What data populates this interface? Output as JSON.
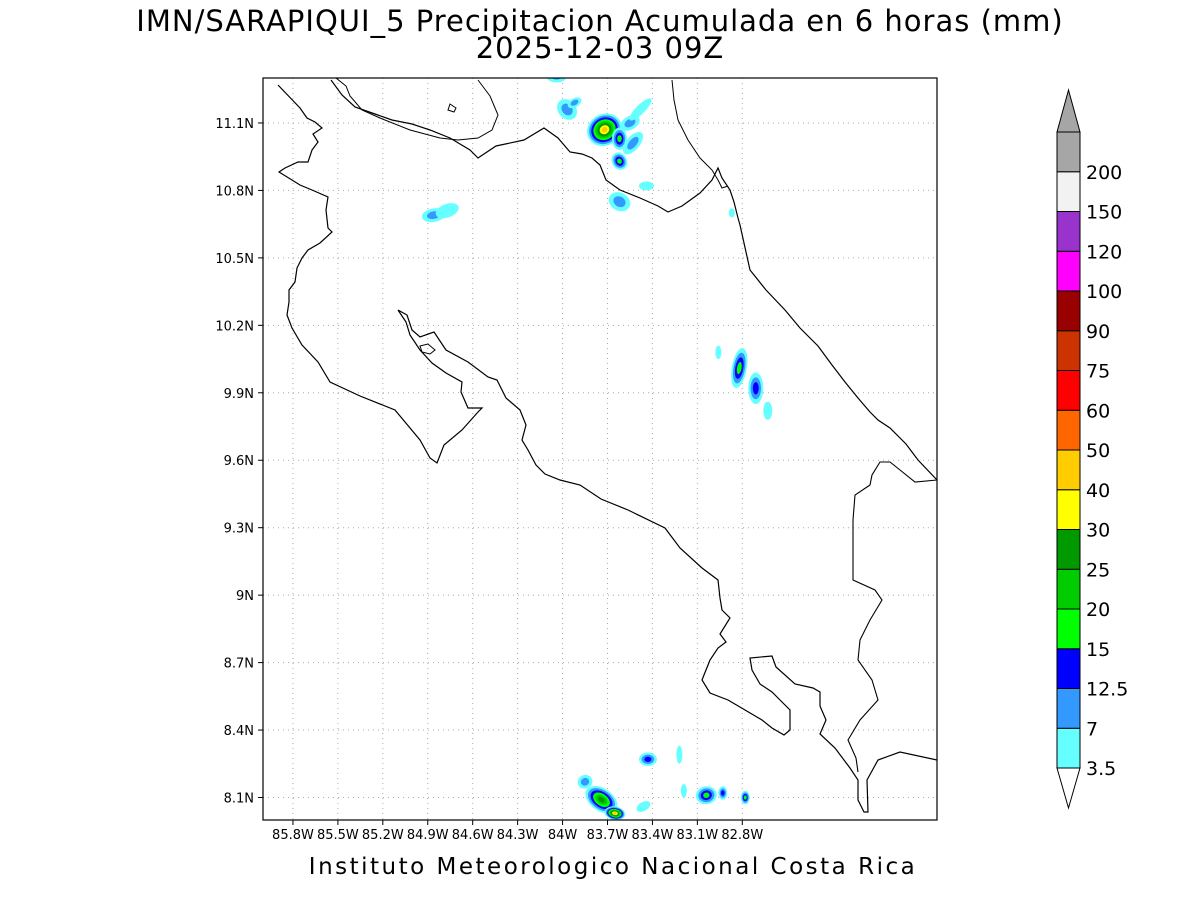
{
  "title": {
    "line1": "IMN/SARAPIQUI_5 Precipitacion Acumulada en 6 horas (mm)",
    "line2": "2025-12-03 09Z"
  },
  "footer": "Instituto Meteorologico Nacional Costa Rica",
  "map": {
    "lon_range": [
      -86.0,
      -81.5
    ],
    "lat_range": [
      8.0,
      11.3
    ],
    "lon_ticks": [
      {
        "value": -85.8,
        "label": "85.8W"
      },
      {
        "value": -85.5,
        "label": "85.5W"
      },
      {
        "value": -85.2,
        "label": "85.2W"
      },
      {
        "value": -84.9,
        "label": "84.9W"
      },
      {
        "value": -84.6,
        "label": "84.6W"
      },
      {
        "value": -84.3,
        "label": "84.3W"
      },
      {
        "value": -84.0,
        "label": "84W"
      },
      {
        "value": -83.7,
        "label": "83.7W"
      },
      {
        "value": -83.4,
        "label": "83.4W"
      },
      {
        "value": -83.1,
        "label": "83.1W"
      },
      {
        "value": -82.8,
        "label": "82.8W"
      }
    ],
    "lat_ticks": [
      {
        "value": 8.1,
        "label": "8.1N"
      },
      {
        "value": 8.4,
        "label": "8.4N"
      },
      {
        "value": 8.7,
        "label": "8.7N"
      },
      {
        "value": 9.0,
        "label": "9N"
      },
      {
        "value": 9.3,
        "label": "9.3N"
      },
      {
        "value": 9.6,
        "label": "9.6N"
      },
      {
        "value": 9.9,
        "label": "9.9N"
      },
      {
        "value": 10.2,
        "label": "10.2N"
      },
      {
        "value": 10.5,
        "label": "10.5N"
      },
      {
        "value": 10.8,
        "label": "10.8N"
      },
      {
        "value": 11.1,
        "label": "11.1N"
      }
    ],
    "grid": true,
    "projection": "latlon"
  },
  "legend": {
    "bins": [
      {
        "label": "3.5",
        "color": "#66ffff"
      },
      {
        "label": "7",
        "color": "#3399ff"
      },
      {
        "label": "12.5",
        "color": "#0000ff"
      },
      {
        "label": "15",
        "color": "#00ff00"
      },
      {
        "label": "20",
        "color": "#00cc00"
      },
      {
        "label": "25",
        "color": "#009900"
      },
      {
        "label": "30",
        "color": "#ffff00"
      },
      {
        "label": "40",
        "color": "#ffcc00"
      },
      {
        "label": "50",
        "color": "#ff6600"
      },
      {
        "label": "60",
        "color": "#ff0000"
      },
      {
        "label": "75",
        "color": "#cc3300"
      },
      {
        "label": "90",
        "color": "#990000"
      },
      {
        "label": "100",
        "color": "#ff00ff"
      },
      {
        "label": "120",
        "color": "#9933cc"
      },
      {
        "label": "150",
        "color": "#f2f2f2"
      },
      {
        "label": "200",
        "color": "#a6a6a6"
      }
    ],
    "under_color": "#ffffff",
    "over_color": "#a6a6a6"
  },
  "rain_cells": [
    {
      "lon": -83.72,
      "lat": 11.07,
      "level": 7,
      "rx": 0.12,
      "ry": 0.07,
      "rot": -30
    },
    {
      "lon": -83.62,
      "lat": 11.03,
      "level": 3,
      "rx": 0.05,
      "ry": 0.05,
      "rot": 0
    },
    {
      "lon": -83.62,
      "lat": 10.93,
      "level": 3,
      "rx": 0.05,
      "ry": 0.04,
      "rot": -30
    },
    {
      "lon": -83.55,
      "lat": 11.1,
      "level": 1,
      "rx": 0.07,
      "ry": 0.03,
      "rot": -30
    },
    {
      "lon": -83.53,
      "lat": 11.01,
      "level": 1,
      "rx": 0.09,
      "ry": 0.03,
      "rot": -50
    },
    {
      "lon": -83.62,
      "lat": 10.75,
      "level": 1,
      "rx": 0.06,
      "ry": 0.05,
      "rot": -60
    },
    {
      "lon": -83.97,
      "lat": 11.16,
      "level": 1,
      "rx": 0.06,
      "ry": 0.05,
      "rot": -40
    },
    {
      "lon": -83.92,
      "lat": 11.19,
      "level": 1,
      "rx": 0.05,
      "ry": 0.02,
      "rot": -30
    },
    {
      "lon": -84.04,
      "lat": 11.31,
      "level": 1,
      "rx": 0.07,
      "ry": 0.03,
      "rot": 0
    },
    {
      "lon": -83.48,
      "lat": 11.16,
      "level": 0,
      "rx": 0.1,
      "ry": 0.02,
      "rot": -45
    },
    {
      "lon": -83.44,
      "lat": 10.82,
      "level": 0,
      "rx": 0.05,
      "ry": 0.02,
      "rot": 0
    },
    {
      "lon": -84.86,
      "lat": 10.69,
      "level": 1,
      "rx": 0.08,
      "ry": 0.03,
      "rot": -10
    },
    {
      "lon": -84.77,
      "lat": 10.71,
      "level": 0,
      "rx": 0.08,
      "ry": 0.03,
      "rot": -20
    },
    {
      "lon": -82.87,
      "lat": 10.7,
      "level": 0,
      "rx": 0.02,
      "ry": 0.02,
      "rot": 0
    },
    {
      "lon": -82.82,
      "lat": 10.01,
      "level": 3,
      "rx": 0.05,
      "ry": 0.09,
      "rot": 10
    },
    {
      "lon": -82.71,
      "lat": 9.92,
      "level": 2,
      "rx": 0.05,
      "ry": 0.07,
      "rot": 0
    },
    {
      "lon": -82.63,
      "lat": 9.82,
      "level": 0,
      "rx": 0.03,
      "ry": 0.04,
      "rot": 0
    },
    {
      "lon": -82.96,
      "lat": 10.08,
      "level": 0,
      "rx": 0.02,
      "ry": 0.03,
      "rot": 0
    },
    {
      "lon": -83.74,
      "lat": 8.09,
      "level": 5,
      "rx": 0.12,
      "ry": 0.05,
      "rot": 35
    },
    {
      "lon": -83.65,
      "lat": 8.03,
      "level": 7,
      "rx": 0.07,
      "ry": 0.03,
      "rot": 10
    },
    {
      "lon": -83.85,
      "lat": 8.17,
      "level": 1,
      "rx": 0.05,
      "ry": 0.03,
      "rot": -20
    },
    {
      "lon": -83.43,
      "lat": 8.27,
      "level": 2,
      "rx": 0.06,
      "ry": 0.03,
      "rot": 0
    },
    {
      "lon": -83.46,
      "lat": 8.06,
      "level": 0,
      "rx": 0.05,
      "ry": 0.02,
      "rot": -30
    },
    {
      "lon": -83.04,
      "lat": 8.11,
      "level": 3,
      "rx": 0.07,
      "ry": 0.04,
      "rot": -10
    },
    {
      "lon": -82.93,
      "lat": 8.12,
      "level": 2,
      "rx": 0.03,
      "ry": 0.03,
      "rot": 0
    },
    {
      "lon": -82.78,
      "lat": 8.1,
      "level": 3,
      "rx": 0.03,
      "ry": 0.03,
      "rot": 0
    },
    {
      "lon": -83.22,
      "lat": 8.29,
      "level": 0,
      "rx": 0.02,
      "ry": 0.04,
      "rot": 0
    },
    {
      "lon": -83.19,
      "lat": 8.13,
      "level": 0,
      "rx": 0.02,
      "ry": 0.03,
      "rot": 0
    }
  ]
}
